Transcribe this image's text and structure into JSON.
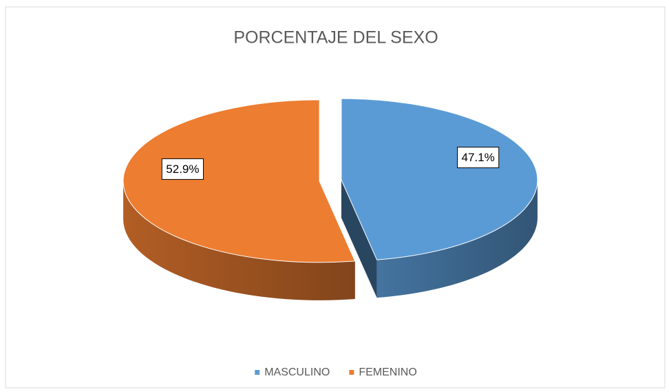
{
  "chart_data": {
    "type": "pie",
    "title": "PORCENTAJE DEL SEXO",
    "categories": [
      "MASCULINO",
      "FEMENINO"
    ],
    "values": [
      47.1,
      52.9
    ],
    "value_labels": [
      "47.1%",
      "52.9%"
    ],
    "colors": [
      "#5b9bd5",
      "#ed7d31"
    ],
    "legend": "bottom"
  }
}
